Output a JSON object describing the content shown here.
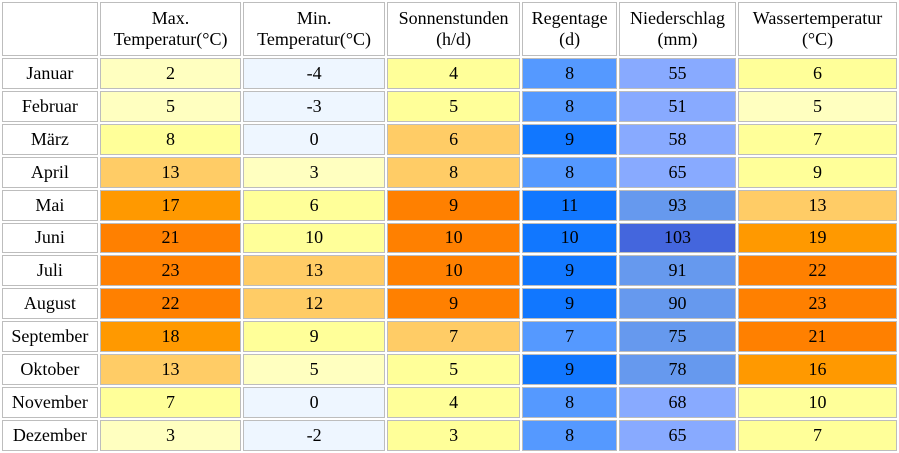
{
  "header": {
    "max": [
      "Max.",
      "Temperatur(°C)"
    ],
    "min": [
      "Min.",
      "Temperatur(°C)"
    ],
    "sun": [
      "Sonnenstunden",
      "(h/d)"
    ],
    "rain": [
      "Regentage",
      "(d)"
    ],
    "prec": [
      "Niederschlag",
      "(mm)"
    ],
    "water": [
      "Wassertemperatur",
      "(°C)"
    ]
  },
  "rows": [
    {
      "month": "Januar",
      "max": "2",
      "min": "-4",
      "sun": "4",
      "rain": "8",
      "prec": "55",
      "water": "6"
    },
    {
      "month": "Februar",
      "max": "5",
      "min": "-3",
      "sun": "5",
      "rain": "8",
      "prec": "51",
      "water": "5"
    },
    {
      "month": "März",
      "max": "8",
      "min": "0",
      "sun": "6",
      "rain": "9",
      "prec": "58",
      "water": "7"
    },
    {
      "month": "April",
      "max": "13",
      "min": "3",
      "sun": "8",
      "rain": "8",
      "prec": "65",
      "water": "9"
    },
    {
      "month": "Mai",
      "max": "17",
      "min": "6",
      "sun": "9",
      "rain": "11",
      "prec": "93",
      "water": "13"
    },
    {
      "month": "Juni",
      "max": "21",
      "min": "10",
      "sun": "10",
      "rain": "10",
      "prec": "103",
      "water": "19"
    },
    {
      "month": "Juli",
      "max": "23",
      "min": "13",
      "sun": "10",
      "rain": "9",
      "prec": "91",
      "water": "22"
    },
    {
      "month": "August",
      "max": "22",
      "min": "12",
      "sun": "9",
      "rain": "9",
      "prec": "90",
      "water": "23"
    },
    {
      "month": "September",
      "max": "18",
      "min": "9",
      "sun": "7",
      "rain": "7",
      "prec": "75",
      "water": "21"
    },
    {
      "month": "Oktober",
      "max": "13",
      "min": "5",
      "sun": "5",
      "rain": "9",
      "prec": "78",
      "water": "16"
    },
    {
      "month": "November",
      "max": "7",
      "min": "0",
      "sun": "4",
      "rain": "8",
      "prec": "68",
      "water": "10"
    },
    {
      "month": "Dezember",
      "max": "3",
      "min": "-2",
      "sun": "3",
      "rain": "8",
      "prec": "65",
      "water": "7"
    }
  ],
  "colors": {
    "max": [
      "#ffffc0",
      "#ffffc0",
      "#ffff99",
      "#ffcc66",
      "#ff9900",
      "#ff8000",
      "#ff8000",
      "#ff8000",
      "#ff9900",
      "#ffcc66",
      "#ffff99",
      "#ffffc0"
    ],
    "min": [
      "#eef6ff",
      "#eef6ff",
      "#eef6ff",
      "#ffffc0",
      "#ffff99",
      "#ffff99",
      "#ffcc66",
      "#ffcc66",
      "#ffff99",
      "#ffffc0",
      "#eef6ff",
      "#eef6ff"
    ],
    "sun": [
      "#ffff99",
      "#ffff99",
      "#ffcc66",
      "#ffcc66",
      "#ff8000",
      "#ff8000",
      "#ff8000",
      "#ff8000",
      "#ffcc66",
      "#ffff99",
      "#ffff99",
      "#ffff99"
    ],
    "rain": [
      "#5599ff",
      "#5599ff",
      "#1177ff",
      "#5599ff",
      "#1177ff",
      "#1177ff",
      "#1177ff",
      "#1177ff",
      "#5599ff",
      "#1177ff",
      "#5599ff",
      "#5599ff"
    ],
    "prec": [
      "#88aaff",
      "#88aaff",
      "#88aaff",
      "#88aaff",
      "#6699ee",
      "#4466dd",
      "#6699ee",
      "#6699ee",
      "#6699ee",
      "#6699ee",
      "#88aaff",
      "#88aaff"
    ],
    "water": [
      "#ffff99",
      "#ffffc0",
      "#ffff99",
      "#ffff99",
      "#ffcc66",
      "#ff9900",
      "#ff8000",
      "#ff8000",
      "#ff8000",
      "#ff9900",
      "#ffff99",
      "#ffff99"
    ]
  }
}
